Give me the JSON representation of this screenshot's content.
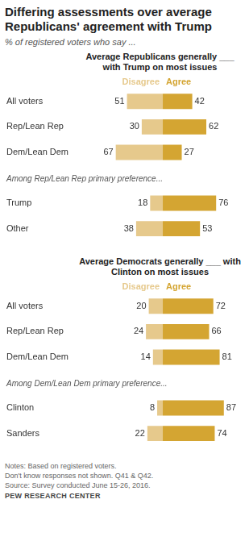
{
  "title": "Differing assessments over average Republicans' agreement with Trump",
  "subtitle": "% of registered voters who say ...",
  "chart_data": [
    {
      "type": "bar",
      "title": "Average Republicans generally ___ with Trump on most issues",
      "orientation": "horizontal",
      "data_labels": true,
      "tick_labels": "y",
      "grid": false,
      "legend": "top",
      "categories": [
        "All voters",
        "Rep/Lean Rep",
        "Dem/Lean Dem",
        null,
        "Trump",
        "Other"
      ],
      "annotations": [
        "Among Rep/Lean Rep primary preference..."
      ],
      "series": [
        {
          "name": "Disagree",
          "color": "#e6c98c",
          "values": [
            51,
            30,
            67,
            null,
            18,
            38
          ]
        },
        {
          "name": "Agree",
          "color": "#d4a532",
          "values": [
            42,
            62,
            27,
            null,
            76,
            53
          ]
        }
      ]
    },
    {
      "type": "bar",
      "title": "Average Democrats generally ___ with Clinton on most issues",
      "orientation": "horizontal",
      "data_labels": true,
      "tick_labels": "y",
      "grid": false,
      "legend": "top",
      "categories": [
        "All voters",
        "Rep/Lean Rep",
        "Dem/Lean Dem",
        null,
        "Clinton",
        "Sanders"
      ],
      "annotations": [
        "Among Dem/Lean Dem primary preference..."
      ],
      "series": [
        {
          "name": "Disagree",
          "color": "#e6c98c",
          "values": [
            20,
            24,
            14,
            null,
            8,
            22
          ]
        },
        {
          "name": "Agree",
          "color": "#d4a532",
          "values": [
            72,
            66,
            81,
            null,
            87,
            74
          ]
        }
      ]
    }
  ],
  "notes": [
    "Notes: Based on registered voters.",
    "Don't know responses not shown. Q41 & Q42.",
    "Source: Survey conducted June 15-26, 2016."
  ],
  "credit": "PEW RESEARCH CENTER"
}
